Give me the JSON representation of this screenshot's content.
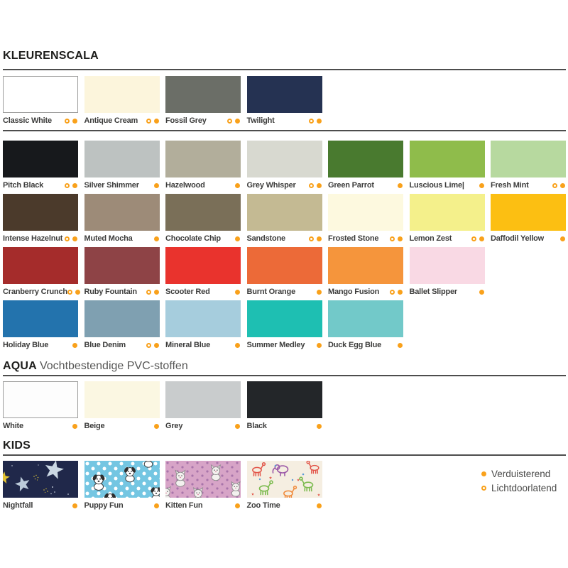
{
  "page": {
    "background": "#ffffff"
  },
  "accent": {
    "dot_color": "#F9A11B",
    "rule_color": "#4D4D4D",
    "title_color": "#1D1D1B",
    "label_color": "#3C3C3B"
  },
  "legend": {
    "items": [
      {
        "label": "Verduisterend",
        "dot": "filled"
      },
      {
        "label": "Lichtdoorlatend",
        "dot": "open"
      }
    ]
  },
  "sections": [
    {
      "id": "kleurenscala",
      "title": "KLEURENSCALA",
      "subtitle": "",
      "rows": [
        [
          {
            "name": "Classic White",
            "color": "#FFFFFF",
            "border": "#9D9D9C",
            "dots": [
              "open",
              "filled"
            ]
          },
          {
            "name": "Antique Cream",
            "color": "#FCF5DC",
            "dots": [
              "open",
              "filled"
            ]
          },
          {
            "name": "Fossil Grey",
            "color": "#6B6E67",
            "dots": [
              "open",
              "filled"
            ]
          },
          {
            "name": "Twilight",
            "color": "#253252",
            "dots": [
              "open",
              "filled"
            ]
          }
        ],
        [
          {
            "name": "Pitch Black",
            "color": "#17191C",
            "dots": [
              "open",
              "filled"
            ]
          },
          {
            "name": "Silver Shimmer",
            "color": "#BDC2C1",
            "dots": [
              "filled"
            ]
          },
          {
            "name": "Hazelwood",
            "color": "#B2AE9B",
            "dots": [
              "filled"
            ]
          },
          {
            "name": "Grey Whisper",
            "color": "#D8D9D0",
            "dots": [
              "open",
              "filled"
            ]
          },
          {
            "name": "Green Parrot",
            "color": "#497A2F",
            "dots": [
              "filled"
            ]
          },
          {
            "name": "Luscious Lime|",
            "color": "#8FBC4B",
            "dots": [
              "filled"
            ]
          },
          {
            "name": "Fresh Mint",
            "color": "#B7D99F",
            "dots": [
              "open",
              "filled"
            ]
          }
        ],
        [
          {
            "name": "Intense Hazelnut",
            "color": "#4B3A2B",
            "dots": [
              "open",
              "filled"
            ]
          },
          {
            "name": "Muted Mocha",
            "color": "#9D8B78",
            "dots": [
              "filled"
            ]
          },
          {
            "name": "Chocolate Chip",
            "color": "#7A6F58",
            "dots": [
              "filled"
            ]
          },
          {
            "name": "Sandstone",
            "color": "#C4BA93",
            "dots": [
              "open",
              "filled"
            ]
          },
          {
            "name": "Frosted Stone",
            "color": "#FDF9DF",
            "dots": [
              "open",
              "filled"
            ]
          },
          {
            "name": "Lemon Zest",
            "color": "#F4F08B",
            "dots": [
              "open",
              "filled"
            ]
          },
          {
            "name": "Daffodil Yellow",
            "color": "#FCBF12",
            "dots": [
              "filled"
            ]
          }
        ],
        [
          {
            "name": "Cranberry Crunch",
            "color": "#A52C2B",
            "dots": [
              "open",
              "filled"
            ]
          },
          {
            "name": "Ruby Fountain",
            "color": "#8E4346",
            "dots": [
              "open",
              "filled"
            ]
          },
          {
            "name": "Scooter Red",
            "color": "#E9332D",
            "dots": [
              "filled"
            ]
          },
          {
            "name": "Burnt Orange",
            "color": "#EC6A38",
            "dots": [
              "filled"
            ]
          },
          {
            "name": "Mango Fusion",
            "color": "#F5953C",
            "dots": [
              "open",
              "filled"
            ]
          },
          {
            "name": "Ballet Slipper",
            "color": "#F9D9E4",
            "dots": [
              "filled"
            ]
          }
        ],
        [
          {
            "name": "Holiday Blue",
            "color": "#2373AD",
            "dots": [
              "filled"
            ]
          },
          {
            "name": "Blue Denim",
            "color": "#7FA0B1",
            "dots": [
              "open",
              "filled"
            ]
          },
          {
            "name": "Mineral Blue",
            "color": "#A6CDDD",
            "dots": [
              "filled"
            ]
          },
          {
            "name": "Summer Medley",
            "color": "#1EBFB2",
            "dots": [
              "filled"
            ]
          },
          {
            "name": "Duck Egg Blue",
            "color": "#72C9C9",
            "dots": [
              "filled"
            ]
          }
        ]
      ]
    },
    {
      "id": "aqua",
      "title": "AQUA",
      "subtitle": "Vochtbestendige PVC-stoffen",
      "rows": [
        [
          {
            "name": "White",
            "color": "#FDFDFD",
            "border": "#9D9D9C",
            "dots": [
              "filled"
            ]
          },
          {
            "name": "Beige",
            "color": "#FBF7E2",
            "dots": [
              "filled"
            ]
          },
          {
            "name": "Grey",
            "color": "#C9CCCD",
            "dots": [
              "filled"
            ]
          },
          {
            "name": "Black",
            "color": "#232629",
            "dots": [
              "filled"
            ]
          }
        ]
      ]
    },
    {
      "id": "kids",
      "title": "KIDS",
      "subtitle": "",
      "rows": [
        [
          {
            "name": "Nightfall",
            "color": "#20284A",
            "pattern": "nightfall-stars",
            "dots": [
              "filled"
            ]
          },
          {
            "name": "Puppy Fun",
            "color": "#74C6E2",
            "pattern": "puppy-polkadots",
            "dots": [
              "filled"
            ]
          },
          {
            "name": "Kitten Fun",
            "color": "#D7A4C7",
            "pattern": "kitten-dots",
            "dots": [
              "filled"
            ]
          },
          {
            "name": "Zoo Time",
            "color": "#F5EEE1",
            "pattern": "zoo-animals",
            "dots": [
              "filled"
            ]
          }
        ]
      ]
    }
  ]
}
